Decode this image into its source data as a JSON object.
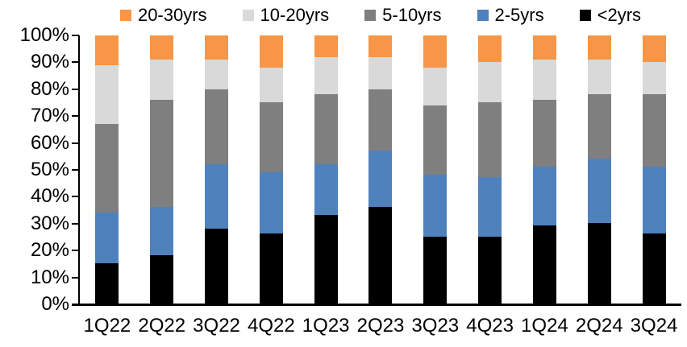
{
  "chart_data": {
    "type": "bar",
    "subtype": "stacked-100-percent",
    "title": "",
    "xlabel": "",
    "ylabel": "",
    "categories": [
      "1Q22",
      "2Q22",
      "3Q22",
      "4Q22",
      "1Q23",
      "2Q23",
      "3Q23",
      "4Q23",
      "1Q24",
      "2Q24",
      "3Q24"
    ],
    "series": [
      {
        "name": "<2yrs",
        "color": "#000000",
        "values": [
          15,
          18,
          28,
          26,
          33,
          36,
          25,
          25,
          29,
          30,
          26
        ]
      },
      {
        "name": "2-5yrs",
        "color": "#4F81BD",
        "values": [
          19,
          18,
          24,
          23,
          19,
          21,
          23,
          22,
          22,
          24,
          25
        ]
      },
      {
        "name": "5-10yrs",
        "color": "#7F7F7F",
        "values": [
          33,
          40,
          28,
          26,
          26,
          23,
          26,
          28,
          25,
          24,
          27
        ]
      },
      {
        "name": "10-20yrs",
        "color": "#D9D9D9",
        "values": [
          22,
          15,
          11,
          13,
          14,
          12,
          14,
          15,
          15,
          13,
          12
        ]
      },
      {
        "name": "20-30yrs",
        "color": "#F79646",
        "values": [
          11,
          9,
          9,
          12,
          8,
          8,
          12,
          10,
          9,
          9,
          10
        ]
      }
    ],
    "stack_order_bottom_to_top": [
      "<2yrs",
      "2-5yrs",
      "5-10yrs",
      "10-20yrs",
      "20-30yrs"
    ],
    "legend_order": [
      "20-30yrs",
      "10-20yrs",
      "5-10yrs",
      "2-5yrs",
      "<2yrs"
    ],
    "legend_position": "top",
    "y_ticks": [
      "100%",
      "90%",
      "80%",
      "70%",
      "60%",
      "50%",
      "40%",
      "30%",
      "20%",
      "10%",
      "0%"
    ],
    "ylim": [
      0,
      100
    ],
    "grid": false,
    "axis_color": "#000000",
    "background_color": "#ffffff"
  }
}
